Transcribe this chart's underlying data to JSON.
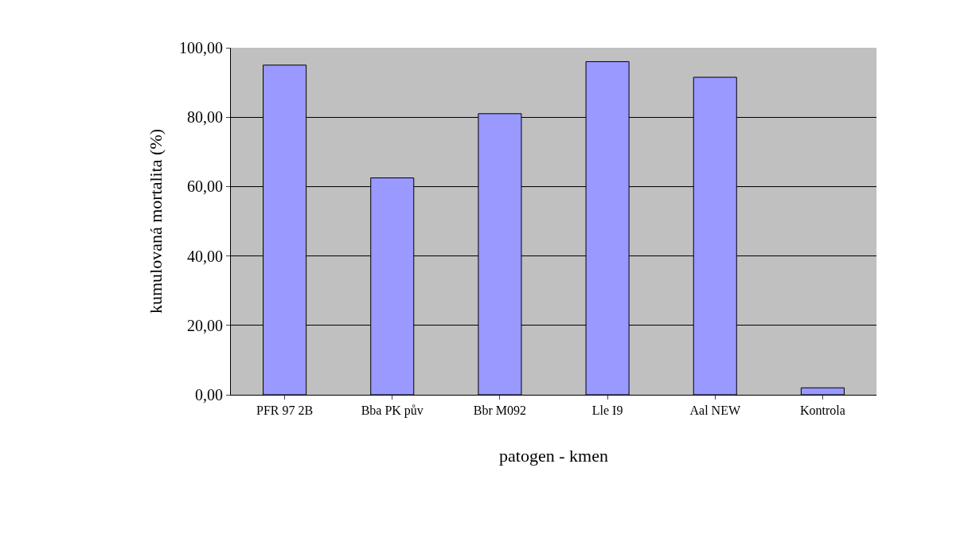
{
  "chart_data": {
    "type": "bar",
    "xlabel": "patogen - kmen",
    "ylabel": "kumulovaná mortalita (%)",
    "categories": [
      "PFR 97 2B",
      "Bba PK pův",
      "Bbr M092",
      "Lle I9",
      "Aal NEW",
      "Kontrola"
    ],
    "values": [
      95,
      62.5,
      81,
      96,
      91.5,
      2
    ],
    "color": "#9999ff",
    "ylim": [
      0,
      100
    ],
    "yticks": [
      {
        "value": 0,
        "label": "0,00"
      },
      {
        "value": 20,
        "label": "20,00"
      },
      {
        "value": 40,
        "label": "40,00"
      },
      {
        "value": 60,
        "label": "60,00"
      },
      {
        "value": 80,
        "label": "80,00"
      },
      {
        "value": 100,
        "label": "100,00"
      }
    ],
    "grid": "y",
    "legend": false
  }
}
